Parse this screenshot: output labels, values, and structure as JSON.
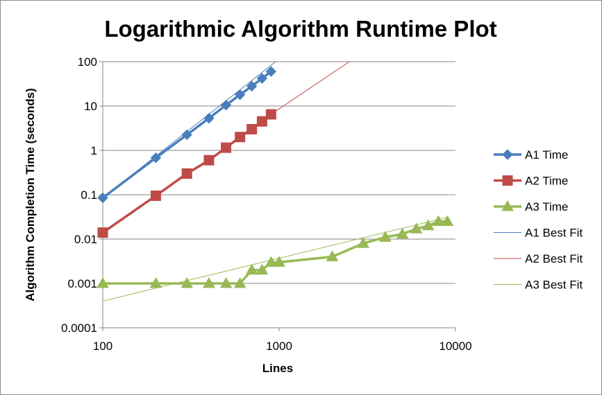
{
  "chart_data": {
    "type": "line",
    "title": "Logarithmic Algorithm Runtime Plot",
    "xlabel": "Lines",
    "ylabel": "Algorithm Completion Time (seconds)",
    "x_scale": "log",
    "y_scale": "log",
    "xlim": [
      100,
      10000
    ],
    "ylim": [
      0.0001,
      100
    ],
    "x_ticks": [
      100,
      1000,
      10000
    ],
    "x_tick_labels": [
      "100",
      "1000",
      "10000"
    ],
    "y_ticks": [
      0.0001,
      0.001,
      0.01,
      0.1,
      1,
      10,
      100
    ],
    "y_tick_labels": [
      "0.0001",
      "0.001",
      "0.01",
      "0.1",
      "1",
      "10",
      "100"
    ],
    "grid": "horizontal",
    "legend_position": "right",
    "series": [
      {
        "name": "A1 Time",
        "color": "#4a7ebb",
        "marker": "diamond",
        "x": [
          100,
          200,
          300,
          400,
          500,
          600,
          700,
          800,
          900
        ],
        "y": [
          0.085,
          0.68,
          2.25,
          5.3,
          10.5,
          18,
          28,
          42,
          60
        ]
      },
      {
        "name": "A2 Time",
        "color": "#be4b48",
        "marker": "square",
        "x": [
          100,
          200,
          300,
          400,
          500,
          600,
          700,
          800,
          900
        ],
        "y": [
          0.014,
          0.095,
          0.3,
          0.6,
          1.15,
          2.0,
          3.0,
          4.5,
          6.5
        ]
      },
      {
        "name": "A3 Time",
        "color": "#98b954",
        "marker": "triangle",
        "x": [
          100,
          200,
          300,
          400,
          500,
          600,
          700,
          800,
          900,
          1000,
          2000,
          3000,
          4000,
          5000,
          6000,
          7000,
          8000,
          9000
        ],
        "y": [
          0.001,
          0.001,
          0.001,
          0.001,
          0.001,
          0.001,
          0.002,
          0.002,
          0.003,
          0.003,
          0.004,
          0.008,
          0.011,
          0.013,
          0.017,
          0.02,
          0.025,
          0.025
        ]
      },
      {
        "name": "A1 Best Fit",
        "color": "#4a7ebb",
        "line_style": "thin",
        "x": [
          100,
          1000
        ],
        "y": [
          0.085,
          115
        ]
      },
      {
        "name": "A2 Best Fit",
        "color": "#be4b48",
        "line_style": "thin",
        "x": [
          900,
          2500
        ],
        "y": [
          6.5,
          100
        ]
      },
      {
        "name": "A3 Best Fit",
        "color": "#98b954",
        "line_style": "thin",
        "x": [
          100,
          9000
        ],
        "y": [
          0.0004,
          0.031
        ]
      }
    ]
  }
}
